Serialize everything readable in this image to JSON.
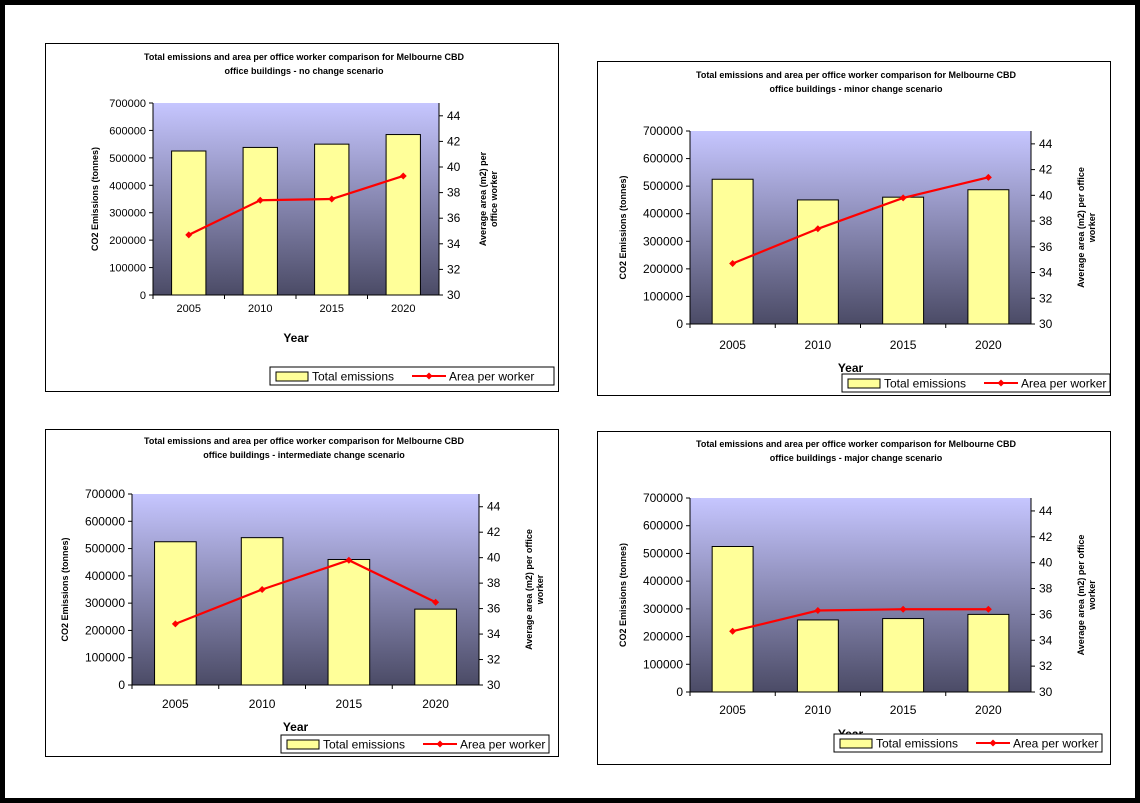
{
  "chart_data": [
    {
      "type": "bar",
      "title": [
        "Total emissions and area per office worker comparison for Melbourne CBD",
        "office buildings - no change scenario"
      ],
      "categories": [
        "2005",
        "2010",
        "2015",
        "2020"
      ],
      "xlabel": "Year",
      "ylabel": "CO2 Emissions (tonnes)",
      "y2label": [
        "Average area (m2) per",
        "office worker"
      ],
      "ylim": [
        0,
        700000
      ],
      "y2lim": [
        30,
        45
      ],
      "series": [
        {
          "name": "Total emissions",
          "type": "bar",
          "axis": "left",
          "values": [
            525000,
            538000,
            550000,
            585000
          ]
        },
        {
          "name": "Area per worker",
          "type": "line",
          "axis": "right",
          "values": [
            34.7,
            37.4,
            37.5,
            39.3
          ]
        }
      ],
      "legend": "bottom-right",
      "colors": {
        "bar_fill": "#ffff99",
        "line": "#ff0000",
        "plot_top": "#c6c6ff",
        "plot_bottom": "#4b4b66"
      }
    },
    {
      "type": "bar",
      "title": [
        "Total emissions and area per office worker comparison for Melbourne CBD",
        "office buildings - minor change scenario"
      ],
      "categories": [
        "2005",
        "2010",
        "2015",
        "2020"
      ],
      "xlabel": "Year",
      "ylabel": "CO2 Emissions (tonnes)",
      "y2label": [
        "Average area (m2) per office",
        "worker"
      ],
      "ylim": [
        0,
        700000
      ],
      "y2lim": [
        30,
        45
      ],
      "series": [
        {
          "name": "Total emissions",
          "type": "bar",
          "axis": "left",
          "values": [
            525000,
            450000,
            460000,
            487000
          ]
        },
        {
          "name": "Area per worker",
          "type": "line",
          "axis": "right",
          "values": [
            34.7,
            37.4,
            39.8,
            41.4
          ]
        }
      ],
      "legend": "bottom-right",
      "colors": {
        "bar_fill": "#ffff99",
        "line": "#ff0000",
        "plot_top": "#c6c6ff",
        "plot_bottom": "#4b4b66"
      }
    },
    {
      "type": "bar",
      "title": [
        "Total emissions and area per office worker comparison for Melbourne CBD",
        "office buildings - intermediate change scenario"
      ],
      "categories": [
        "2005",
        "2010",
        "2015",
        "2020"
      ],
      "xlabel": "Year",
      "ylabel": "CO2 Emissions (tonnes)",
      "y2label": [
        "Average area (m2) per office",
        "worker"
      ],
      "ylim": [
        0,
        700000
      ],
      "y2lim": [
        30,
        45
      ],
      "series": [
        {
          "name": "Total emissions",
          "type": "bar",
          "axis": "left",
          "values": [
            525000,
            540000,
            460000,
            278000
          ]
        },
        {
          "name": "Area per worker",
          "type": "line",
          "axis": "right",
          "values": [
            34.8,
            37.5,
            39.8,
            36.5
          ]
        }
      ],
      "legend": "bottom-right",
      "colors": {
        "bar_fill": "#ffff99",
        "line": "#ff0000",
        "plot_top": "#c6c6ff",
        "plot_bottom": "#4b4b66"
      }
    },
    {
      "type": "bar",
      "title": [
        "Total emissions and area per office worker comparison for Melbourne CBD",
        "office buildings - major change scenario"
      ],
      "categories": [
        "2005",
        "2010",
        "2015",
        "2020"
      ],
      "xlabel": "Year",
      "ylabel": "CO2 Emissions (tonnes)",
      "y2label": [
        "Average area (m2) per office",
        "worker"
      ],
      "ylim": [
        0,
        700000
      ],
      "y2lim": [
        30,
        45
      ],
      "series": [
        {
          "name": "Total emissions",
          "type": "bar",
          "axis": "left",
          "values": [
            525000,
            260000,
            265000,
            280000
          ]
        },
        {
          "name": "Area per worker",
          "type": "line",
          "axis": "right",
          "values": [
            34.7,
            36.3,
            36.4,
            36.4
          ]
        }
      ],
      "legend": "bottom-right",
      "colors": {
        "bar_fill": "#ffff99",
        "line": "#ff0000",
        "plot_top": "#c6c6ff",
        "plot_bottom": "#4b4b66"
      }
    }
  ]
}
